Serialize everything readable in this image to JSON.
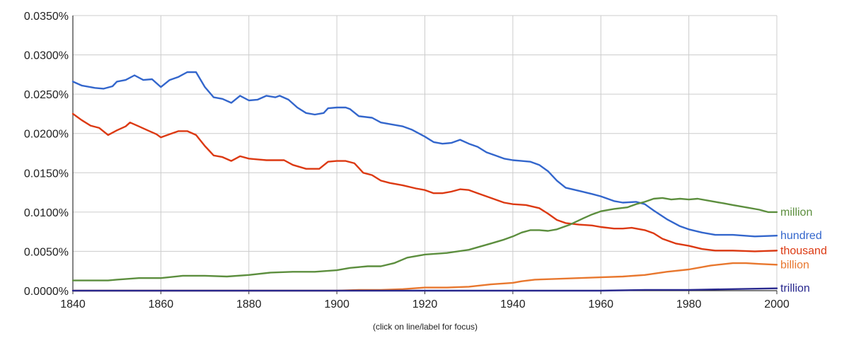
{
  "chart_data": {
    "type": "line",
    "title": "",
    "xlabel": "",
    "ylabel": "",
    "xlim": [
      1840,
      2000
    ],
    "ylim": [
      0,
      0.035
    ],
    "grid": true,
    "legend": "right-end-labels",
    "x_ticks": [
      "1840",
      "1860",
      "1880",
      "1900",
      "1920",
      "1940",
      "1960",
      "1980",
      "2000"
    ],
    "y_ticks": [
      "0.0000%",
      "0.0050%",
      "0.0100%",
      "0.0150%",
      "0.0200%",
      "0.0250%",
      "0.0300%",
      "0.0350%"
    ],
    "note": "(click on line/label for focus)",
    "series": [
      {
        "name": "hundred",
        "color": "#3366cc",
        "points": [
          [
            1840,
            0.0266
          ],
          [
            1842,
            0.0261
          ],
          [
            1845,
            0.0258
          ],
          [
            1847,
            0.0257
          ],
          [
            1849,
            0.026
          ],
          [
            1850,
            0.0266
          ],
          [
            1852,
            0.0268
          ],
          [
            1854,
            0.0274
          ],
          [
            1856,
            0.0268
          ],
          [
            1858,
            0.0269
          ],
          [
            1860,
            0.0259
          ],
          [
            1862,
            0.0268
          ],
          [
            1864,
            0.0272
          ],
          [
            1866,
            0.0278
          ],
          [
            1868,
            0.0278
          ],
          [
            1870,
            0.0259
          ],
          [
            1872,
            0.0246
          ],
          [
            1874,
            0.0244
          ],
          [
            1876,
            0.0239
          ],
          [
            1878,
            0.0248
          ],
          [
            1880,
            0.0242
          ],
          [
            1882,
            0.0243
          ],
          [
            1884,
            0.0248
          ],
          [
            1886,
            0.0246
          ],
          [
            1887,
            0.0248
          ],
          [
            1889,
            0.0243
          ],
          [
            1891,
            0.0233
          ],
          [
            1893,
            0.0226
          ],
          [
            1895,
            0.0224
          ],
          [
            1897,
            0.0226
          ],
          [
            1898,
            0.0232
          ],
          [
            1900,
            0.0233
          ],
          [
            1902,
            0.0233
          ],
          [
            1903,
            0.0231
          ],
          [
            1905,
            0.0222
          ],
          [
            1908,
            0.022
          ],
          [
            1910,
            0.0214
          ],
          [
            1912,
            0.0212
          ],
          [
            1915,
            0.0209
          ],
          [
            1917,
            0.0205
          ],
          [
            1920,
            0.0196
          ],
          [
            1922,
            0.0189
          ],
          [
            1924,
            0.0187
          ],
          [
            1926,
            0.0188
          ],
          [
            1928,
            0.0192
          ],
          [
            1930,
            0.0187
          ],
          [
            1932,
            0.0183
          ],
          [
            1934,
            0.0176
          ],
          [
            1936,
            0.0172
          ],
          [
            1938,
            0.0168
          ],
          [
            1940,
            0.0166
          ],
          [
            1942,
            0.0165
          ],
          [
            1944,
            0.0164
          ],
          [
            1946,
            0.016
          ],
          [
            1948,
            0.0152
          ],
          [
            1950,
            0.014
          ],
          [
            1952,
            0.0131
          ],
          [
            1955,
            0.0127
          ],
          [
            1958,
            0.0123
          ],
          [
            1960,
            0.012
          ],
          [
            1963,
            0.0114
          ],
          [
            1965,
            0.0112
          ],
          [
            1968,
            0.0113
          ],
          [
            1970,
            0.011
          ],
          [
            1972,
            0.0102
          ],
          [
            1975,
            0.0091
          ],
          [
            1978,
            0.0082
          ],
          [
            1980,
            0.0078
          ],
          [
            1983,
            0.0074
          ],
          [
            1986,
            0.0071
          ],
          [
            1990,
            0.0071
          ],
          [
            1995,
            0.0069
          ],
          [
            2000,
            0.007
          ]
        ]
      },
      {
        "name": "thousand",
        "color": "#dc3912",
        "points": [
          [
            1840,
            0.0225
          ],
          [
            1842,
            0.0217
          ],
          [
            1844,
            0.021
          ],
          [
            1846,
            0.0207
          ],
          [
            1848,
            0.0198
          ],
          [
            1850,
            0.0204
          ],
          [
            1852,
            0.0209
          ],
          [
            1853,
            0.0214
          ],
          [
            1855,
            0.0209
          ],
          [
            1857,
            0.0204
          ],
          [
            1859,
            0.0199
          ],
          [
            1860,
            0.0195
          ],
          [
            1862,
            0.0199
          ],
          [
            1864,
            0.0203
          ],
          [
            1866,
            0.0203
          ],
          [
            1868,
            0.0198
          ],
          [
            1870,
            0.0184
          ],
          [
            1872,
            0.0172
          ],
          [
            1874,
            0.017
          ],
          [
            1876,
            0.0165
          ],
          [
            1878,
            0.0171
          ],
          [
            1880,
            0.0168
          ],
          [
            1882,
            0.0167
          ],
          [
            1884,
            0.0166
          ],
          [
            1886,
            0.0166
          ],
          [
            1888,
            0.0166
          ],
          [
            1890,
            0.016
          ],
          [
            1893,
            0.0155
          ],
          [
            1896,
            0.0155
          ],
          [
            1898,
            0.0164
          ],
          [
            1900,
            0.0165
          ],
          [
            1902,
            0.0165
          ],
          [
            1904,
            0.0162
          ],
          [
            1906,
            0.015
          ],
          [
            1908,
            0.0147
          ],
          [
            1910,
            0.014
          ],
          [
            1912,
            0.0137
          ],
          [
            1915,
            0.0134
          ],
          [
            1918,
            0.013
          ],
          [
            1920,
            0.0128
          ],
          [
            1922,
            0.0124
          ],
          [
            1924,
            0.0124
          ],
          [
            1926,
            0.0126
          ],
          [
            1928,
            0.0129
          ],
          [
            1930,
            0.0128
          ],
          [
            1932,
            0.0124
          ],
          [
            1935,
            0.0118
          ],
          [
            1938,
            0.0112
          ],
          [
            1940,
            0.011
          ],
          [
            1943,
            0.0109
          ],
          [
            1946,
            0.0105
          ],
          [
            1948,
            0.0098
          ],
          [
            1950,
            0.009
          ],
          [
            1952,
            0.0086
          ],
          [
            1955,
            0.0084
          ],
          [
            1958,
            0.0083
          ],
          [
            1960,
            0.0081
          ],
          [
            1963,
            0.0079
          ],
          [
            1965,
            0.0079
          ],
          [
            1967,
            0.008
          ],
          [
            1970,
            0.0077
          ],
          [
            1972,
            0.0073
          ],
          [
            1974,
            0.0066
          ],
          [
            1977,
            0.006
          ],
          [
            1980,
            0.0057
          ],
          [
            1983,
            0.0053
          ],
          [
            1986,
            0.0051
          ],
          [
            1990,
            0.0051
          ],
          [
            1995,
            0.005
          ],
          [
            2000,
            0.0051
          ]
        ]
      },
      {
        "name": "million",
        "color": "#5c8e3e",
        "points": [
          [
            1840,
            0.0013
          ],
          [
            1845,
            0.0013
          ],
          [
            1848,
            0.0013
          ],
          [
            1850,
            0.0014
          ],
          [
            1855,
            0.0016
          ],
          [
            1860,
            0.0016
          ],
          [
            1865,
            0.0019
          ],
          [
            1870,
            0.0019
          ],
          [
            1875,
            0.0018
          ],
          [
            1880,
            0.002
          ],
          [
            1885,
            0.0023
          ],
          [
            1890,
            0.0024
          ],
          [
            1895,
            0.0024
          ],
          [
            1900,
            0.0026
          ],
          [
            1903,
            0.0029
          ],
          [
            1907,
            0.0031
          ],
          [
            1910,
            0.0031
          ],
          [
            1913,
            0.0035
          ],
          [
            1916,
            0.0042
          ],
          [
            1920,
            0.0046
          ],
          [
            1925,
            0.0048
          ],
          [
            1930,
            0.0052
          ],
          [
            1935,
            0.006
          ],
          [
            1938,
            0.0065
          ],
          [
            1940,
            0.0069
          ],
          [
            1942,
            0.0074
          ],
          [
            1944,
            0.0077
          ],
          [
            1946,
            0.0077
          ],
          [
            1948,
            0.0076
          ],
          [
            1950,
            0.0078
          ],
          [
            1953,
            0.0084
          ],
          [
            1956,
            0.0092
          ],
          [
            1958,
            0.0097
          ],
          [
            1960,
            0.0101
          ],
          [
            1963,
            0.0104
          ],
          [
            1966,
            0.0106
          ],
          [
            1968,
            0.011
          ],
          [
            1970,
            0.0113
          ],
          [
            1972,
            0.0117
          ],
          [
            1974,
            0.0118
          ],
          [
            1976,
            0.0116
          ],
          [
            1978,
            0.0117
          ],
          [
            1980,
            0.0116
          ],
          [
            1982,
            0.0117
          ],
          [
            1985,
            0.0114
          ],
          [
            1988,
            0.0111
          ],
          [
            1990,
            0.0109
          ],
          [
            1993,
            0.0106
          ],
          [
            1996,
            0.0103
          ],
          [
            1998,
            0.01
          ],
          [
            2000,
            0.01
          ]
        ]
      },
      {
        "name": "billion",
        "color": "#e8772e",
        "points": [
          [
            1840,
            0.0
          ],
          [
            1880,
            0.0
          ],
          [
            1900,
            0.0
          ],
          [
            1905,
            0.0001
          ],
          [
            1910,
            0.0001
          ],
          [
            1915,
            0.0002
          ],
          [
            1920,
            0.0004
          ],
          [
            1925,
            0.0004
          ],
          [
            1930,
            0.0005
          ],
          [
            1935,
            0.0008
          ],
          [
            1940,
            0.001
          ],
          [
            1942,
            0.0012
          ],
          [
            1945,
            0.0014
          ],
          [
            1950,
            0.0015
          ],
          [
            1955,
            0.0016
          ],
          [
            1960,
            0.0017
          ],
          [
            1965,
            0.0018
          ],
          [
            1970,
            0.002
          ],
          [
            1975,
            0.0024
          ],
          [
            1980,
            0.0027
          ],
          [
            1985,
            0.0032
          ],
          [
            1990,
            0.0035
          ],
          [
            1993,
            0.0035
          ],
          [
            1996,
            0.0034
          ],
          [
            2000,
            0.0033
          ]
        ]
      },
      {
        "name": "trillion",
        "color": "#28288e",
        "points": [
          [
            1840,
            0.0
          ],
          [
            1960,
            0.0
          ],
          [
            1970,
            0.0001
          ],
          [
            1980,
            0.0001
          ],
          [
            1990,
            0.0002
          ],
          [
            2000,
            0.0003
          ]
        ]
      }
    ]
  }
}
